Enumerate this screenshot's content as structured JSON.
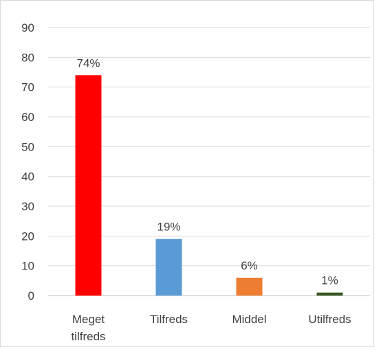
{
  "chart_data": {
    "type": "bar",
    "categories": [
      [
        "Meget",
        "tilfreds"
      ],
      [
        "Tilfreds"
      ],
      [
        "Middel"
      ],
      [
        "Utilfreds"
      ]
    ],
    "values": [
      74,
      19,
      6,
      1
    ],
    "data_labels": [
      "74%",
      "19%",
      "6%",
      "1%"
    ],
    "colors": [
      "#ff0000",
      "#5b9bd5",
      "#ed7d31",
      "#375623"
    ],
    "ylim": [
      0,
      90
    ],
    "yticks": [
      0,
      10,
      20,
      30,
      40,
      50,
      60,
      70,
      80,
      90
    ],
    "grid": true,
    "legend": "none"
  }
}
